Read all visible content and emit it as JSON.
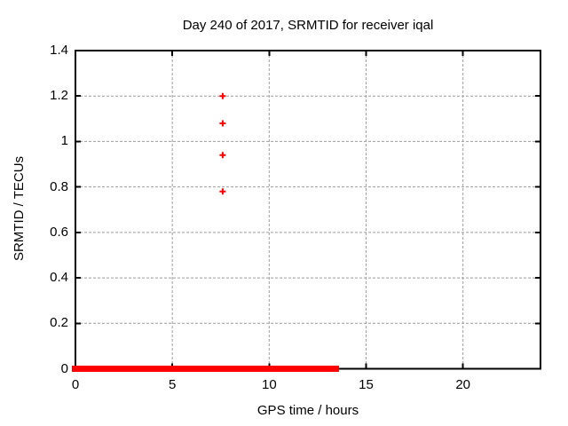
{
  "figure": {
    "background": "#ffffff",
    "text_color": "#000000"
  },
  "chart_data": {
    "type": "scatter",
    "title": "Day 240 of 2017, SRMTID for receiver iqal",
    "xlabel": "GPS time / hours",
    "ylabel": "SRMTID / TECUs",
    "xlim": [
      0,
      24
    ],
    "ylim": [
      0,
      1.4
    ],
    "xticks": [
      {
        "v": 0,
        "label": "0"
      },
      {
        "v": 5,
        "label": "5"
      },
      {
        "v": 10,
        "label": "10"
      },
      {
        "v": 15,
        "label": "15"
      },
      {
        "v": 20,
        "label": "20"
      }
    ],
    "yticks": [
      {
        "v": 0,
        "label": "0"
      },
      {
        "v": 0.2,
        "label": "0.2"
      },
      {
        "v": 0.4,
        "label": "0.4"
      },
      {
        "v": 0.6,
        "label": "0.6"
      },
      {
        "v": 0.8,
        "label": "0.8"
      },
      {
        "v": 1,
        "label": "1"
      },
      {
        "v": 1.2,
        "label": "1.2"
      },
      {
        "v": 1.4,
        "label": "1.4"
      }
    ],
    "grid": {
      "show": true,
      "color": "#9e9e9e",
      "style": "dashed"
    },
    "border_color": "#000000",
    "legend": null,
    "series": [
      {
        "name": "SRMTID",
        "color": "#ff0000",
        "marker": "plus",
        "points": [
          {
            "x": 7.6,
            "y": 1.2
          },
          {
            "x": 7.6,
            "y": 1.08
          },
          {
            "x": 7.6,
            "y": 0.94
          },
          {
            "x": 7.6,
            "y": 0.78
          }
        ],
        "dense_baseline": {
          "y": 0,
          "x_start": 0,
          "x_end": 13.6
        }
      }
    ]
  }
}
